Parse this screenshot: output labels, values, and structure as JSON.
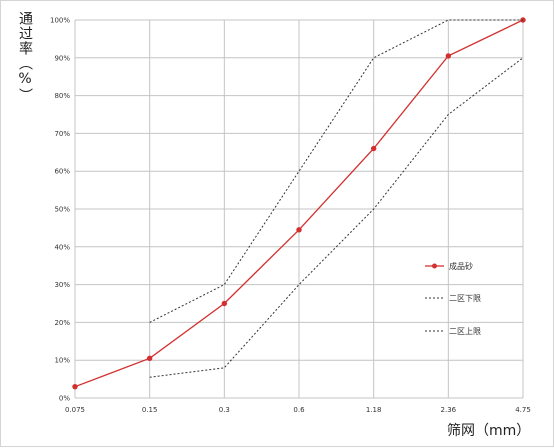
{
  "chart_data": {
    "type": "line",
    "categories": [
      "0.075",
      "0.15",
      "0.3",
      "0.6",
      "1.18",
      "2.36",
      "4.75"
    ],
    "ylim": [
      0,
      100
    ],
    "yticks": [
      "0%",
      "10%",
      "20%",
      "30%",
      "40%",
      "50%",
      "60%",
      "70%",
      "80%",
      "90%",
      "100%"
    ],
    "xlabel": "筛网（mm）",
    "ylabel": "通过率（%）",
    "grid": true,
    "legend_position": "right",
    "series": [
      {
        "name": "成品砂",
        "color": "#d32f2f",
        "style": "solid-marker",
        "x": [
          "0.075",
          "0.15",
          "0.3",
          "0.6",
          "1.18",
          "2.36",
          "4.75"
        ],
        "values": [
          3,
          10.5,
          25,
          44.5,
          66,
          90.5,
          100
        ]
      },
      {
        "name": "二区下限",
        "color": "#333333",
        "style": "dotted",
        "x": [
          "0.15",
          "0.3",
          "0.6",
          "1.18",
          "2.36",
          "4.75"
        ],
        "values": [
          20,
          30,
          60,
          90,
          100,
          100
        ]
      },
      {
        "name": "二区上限",
        "color": "#333333",
        "style": "dotted",
        "x": [
          "0.15",
          "0.3",
          "0.6",
          "1.18",
          "2.36",
          "4.75"
        ],
        "values": [
          5.5,
          8,
          30,
          50,
          75,
          90
        ]
      }
    ]
  }
}
